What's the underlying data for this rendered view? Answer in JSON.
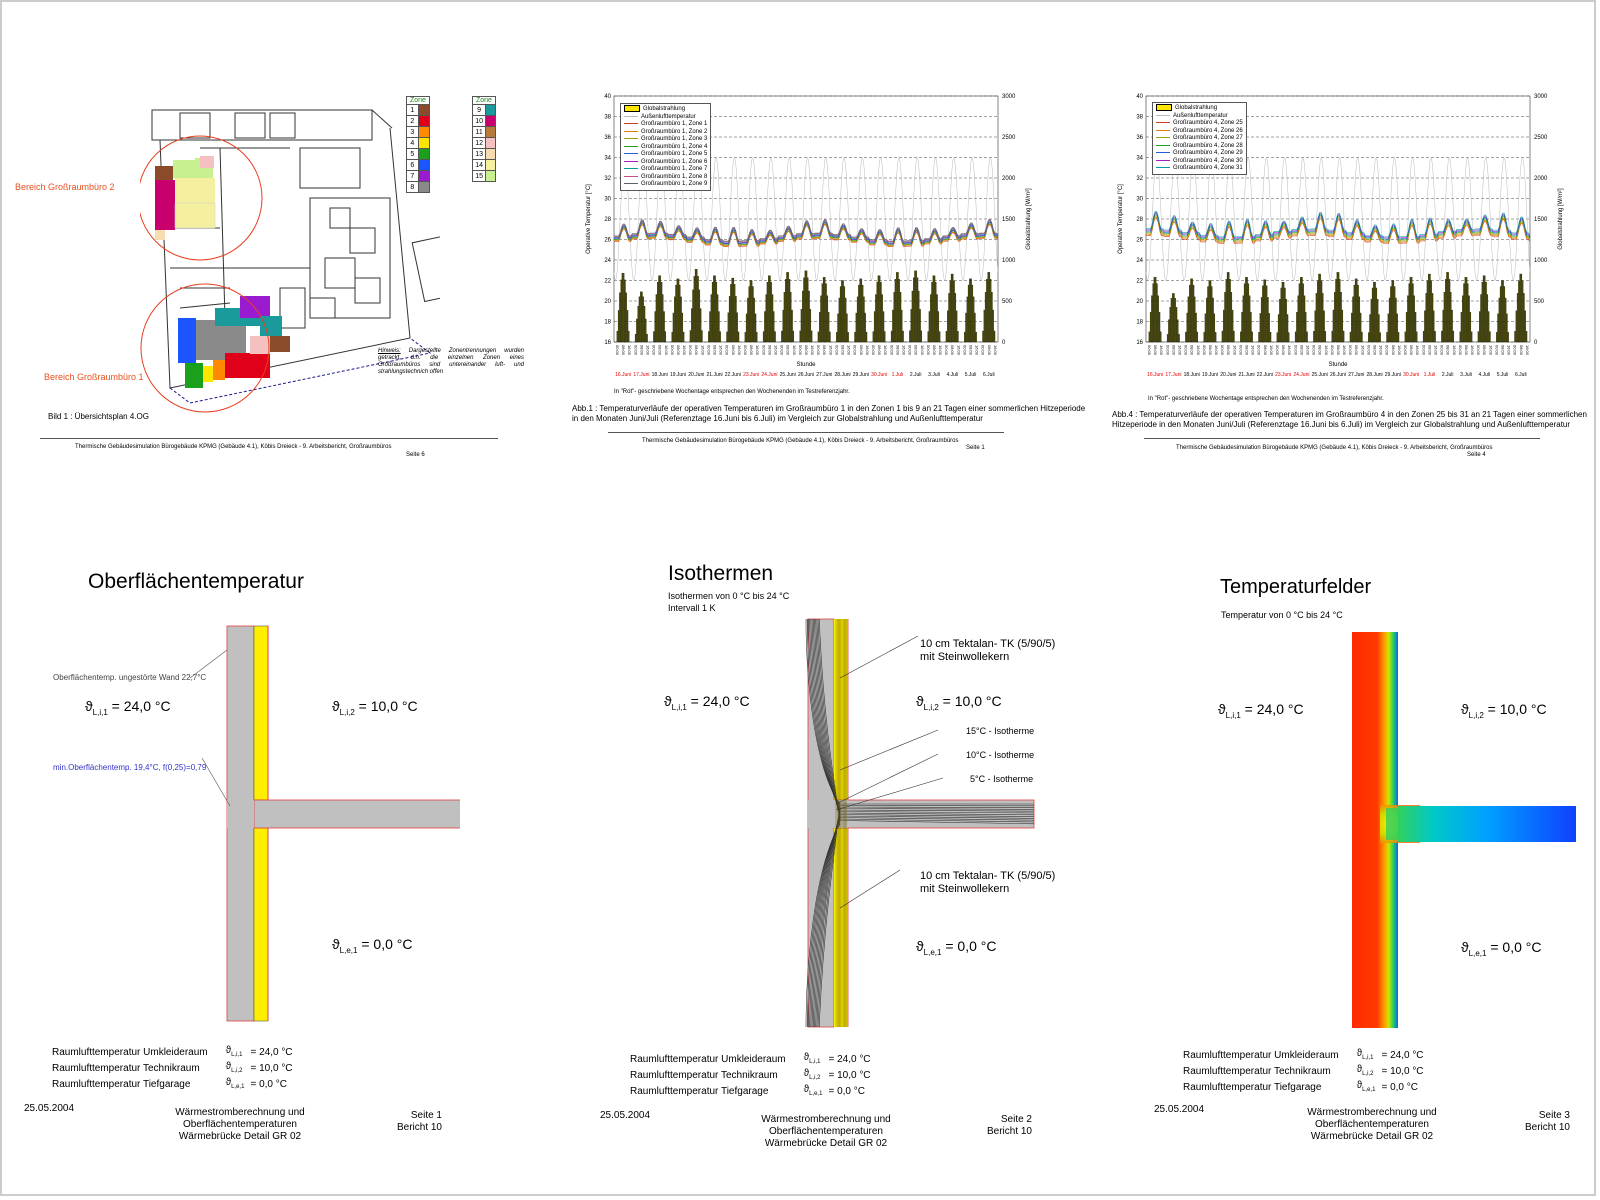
{
  "p1": {
    "legend_header": "Zone",
    "legend_col1": [
      "1",
      "2",
      "3",
      "4",
      "5",
      "6",
      "7",
      "8"
    ],
    "legend_col2": [
      "9",
      "10",
      "11",
      "12",
      "13",
      "14",
      "15"
    ],
    "colors_col1": [
      "#8b4a2a",
      "#e0001a",
      "#ff8a00",
      "#ffe600",
      "#1aa01a",
      "#1a55ff",
      "#9a1ad0",
      "#8a8a8a"
    ],
    "colors_col2": [
      "#1a9a9a",
      "#c8006e",
      "#b87a3a",
      "#f5c0c0",
      "#f7dcb0",
      "#f5f0a0",
      "#c8f090"
    ],
    "area2": "Bereich Großraumbüro  2",
    "area1": "Bereich Großraumbüro  1",
    "hint_label": "Hinweis:",
    "hint_text": " Dargestellte Zonentrennungen wurden getrackt, d.h. die einzelnen Zonen eines Großraumbüros sind untereinander luft- und strahlungstechnich offen",
    "bild": "Bild 1 : Übersichtsplan 4.OG",
    "footer": "Thermische Gebäudesimulation Bürogebäude KPMG  (Gebäude 4.1), Köbis Dreieck  - 9. Arbeitsbericht, Großraumbüros",
    "page": "Seite 6"
  },
  "p2": {
    "legend": [
      "Globalstrahlung",
      "Außenlufttemperatur",
      "Großraumbüro 1, Zone 1",
      "Großraumbüro 1, Zone 2",
      "Großraumbüro 1, Zone 3",
      "Großraumbüro 1, Zone 4",
      "Großraumbüro 1, Zone 5",
      "Großraumbüro 1, Zone 6",
      "Großraumbüro 1, Zone 7",
      "Großraumbüro 1, Zone 8",
      "Großraumbüro 1, Zone 9"
    ],
    "ylabel": "Operative Temperatur [°C]",
    "y2label": "Globalstrahlung [W/m²]",
    "xlabel": "Stunde",
    "note": "In \"Rot\"- geschriebene Wochentage entsprechen den Wochenenden im Testreferenzjahr.",
    "caption": "Abb.1 : Temperaturverläufe der operativen Temperaturen im Großraumbüro 1 in den Zonen  1 bis 9 an 21 Tagen einer sommerlichen Hitzeperiode in den Monaten Juni/Juli  (Referenztage 16.Juni bis 6.Juli) im Vergleich  zur Globalstrahlung und Außenlufttemperatur",
    "footer": "Thermische Gebäudesimulation Bürogebäude KPMG  (Gebäude 4.1), Köbis Dreieck  - 9. Arbeitsbericht, Großraumbüros",
    "page": "Seite 1"
  },
  "p3": {
    "legend": [
      "Globalstrahlung",
      "Außenlufttemperatur",
      "Großraumbüro 4, Zone 25",
      "Großraumbüro 4, Zone 26",
      "Großraumbüro 4, Zone 27",
      "Großraumbüro 4, Zone 28",
      "Großraumbüro 4, Zone 29",
      "Großraumbüro 4, Zone 30",
      "Großraumbüro 4, Zone 31"
    ],
    "ylabel": "Operative Temperatur [°C]",
    "y2label": "Globalstrahlung [W/m²]",
    "xlabel": "Stunde",
    "note": "In \"Rot\"- geschriebene Wochentage entsprechen den Wochenenden im Testreferenzjahr.",
    "caption": "Abb.4 : Temperaturverläufe der operativen Temperaturen im Großraumbüro 4 in den Zonen 25 bis 31 an 21 Tagen einer sommerlichen Hitzeperiode in den Monaten Juni/Juli (Referenztage 16.Juni bis 6.Juli) im Vergleich zur Globalstrahlung und Außenlufttemperatur",
    "footer": "Thermische Gebäudesimulation Bürogebäude KPMG (Gebäude 4.1), Köbis Dreieck - 9. Arbeitsbericht, Großraumbüros",
    "page": "Seite 4"
  },
  "chart_data": [
    {
      "type": "line",
      "y_ticks": [
        "40",
        "38",
        "36",
        "34",
        "32",
        "30",
        "28",
        "26",
        "24",
        "22",
        "20",
        "18",
        "16"
      ],
      "y2_ticks": [
        "3000",
        "2500",
        "2000",
        "1500",
        "1000",
        "500",
        "0"
      ],
      "ylim": [
        16,
        40
      ],
      "y2lim": [
        0,
        3000
      ],
      "days": [
        "16.Juni",
        "17.Juni",
        "18.Juni",
        "19.Juni",
        "20.Juni",
        "21.Juni",
        "22.Juni",
        "23.Juni",
        "24.Juni",
        "25.Juni",
        "26.Juni",
        "27.Juni",
        "28.Juni",
        "29.Juni",
        "30.Juni",
        "1.Juli",
        "2.Juli",
        "3.Juli",
        "4.Juli",
        "5.Juli",
        "6.Juli"
      ],
      "weekend": [
        true,
        true,
        false,
        false,
        false,
        false,
        false,
        true,
        true,
        false,
        false,
        false,
        false,
        false,
        true,
        true,
        false,
        false,
        false,
        false,
        false
      ],
      "series_zone_temp_range": [
        24.5,
        28.5
      ],
      "globalstrahlung_peaks": [
        850,
        620,
        820,
        780,
        900,
        820,
        790,
        760,
        820,
        860,
        880,
        800,
        760,
        780,
        820,
        860,
        880,
        820,
        840,
        780,
        860
      ]
    },
    {
      "type": "line",
      "y_ticks": [
        "40",
        "38",
        "36",
        "34",
        "32",
        "30",
        "28",
        "26",
        "24",
        "22",
        "20",
        "18",
        "16"
      ],
      "y2_ticks": [
        "3000",
        "2500",
        "2000",
        "1500",
        "1000",
        "500",
        "0"
      ],
      "ylim": [
        16,
        40
      ],
      "y2lim": [
        0,
        3000
      ],
      "days": [
        "16.Juni",
        "17.Juni",
        "18.Juni",
        "19.Juni",
        "20.Juni",
        "21.Juni",
        "22.Juni",
        "23.Juni",
        "24.Juni",
        "25.Juni",
        "26.Juni",
        "27.Juni",
        "28.Juni",
        "29.Juni",
        "30.Juni",
        "1.Juli",
        "2.Juli",
        "3.Juli",
        "4.Juli",
        "5.Juli",
        "6.Juli"
      ],
      "weekend": [
        true,
        true,
        false,
        false,
        false,
        false,
        false,
        true,
        true,
        false,
        false,
        false,
        false,
        false,
        true,
        true,
        false,
        false,
        false,
        false,
        false
      ],
      "series_zone_temp_range": [
        24.5,
        29.5
      ],
      "globalstrahlung_peaks": [
        800,
        600,
        780,
        760,
        860,
        800,
        770,
        740,
        800,
        840,
        860,
        780,
        740,
        760,
        800,
        840,
        860,
        800,
        820,
        760,
        840
      ]
    }
  ],
  "p4": {
    "title": "Oberflächentemperatur",
    "note1": "Oberflächentemp. ungestörte Wand 22,7°C",
    "note2": "min.Oberflächentemp. 19,4°C, f(0,25)=0,79",
    "t1_sym": "ϑ",
    "t1_sub": "L,i,1",
    "t1_val": " =  24,0 °C",
    "t2_sym": "ϑ",
    "t2_sub": "L,i,2",
    "t2_val": " =  10,0 °C",
    "t3_sym": "ϑ",
    "t3_sub": "L,e,1",
    "t3_val": " =    0,0 °C",
    "date": "25.05.2004",
    "footer": [
      "Wärmestromberechnung  und",
      "Oberflächentemperaturen",
      "Wärmebrücke Detail GR 02"
    ],
    "page": [
      "Seite 1",
      "Bericht  10"
    ]
  },
  "p5": {
    "title": "Isothermen",
    "sub1": "Isothermen  von  0 °C  bis 24  °C",
    "sub2": "Intervall  1 K",
    "label1": [
      "10 cm Tektalan- TK (5/90/5)",
      "mit Steinwollekern"
    ],
    "iso15": "15°C - Isotherme",
    "iso10": "10°C - Isotherme",
    "iso5": "5°C - Isotherme",
    "label2": [
      "10 cm Tektalan- TK (5/90/5)",
      "mit Steinwollekern"
    ],
    "date": "25.05.2004",
    "footer": [
      "Wärmestromberechnung  und",
      "Oberflächentemperaturen",
      "Wärmebrücke Detail GR 02"
    ],
    "page": [
      "Seite 2",
      "Bericht  10"
    ]
  },
  "p6": {
    "title": "Temperaturfelder",
    "sub": "Temperatur  von  0 °C  bis 24  °C",
    "date": "25.05.2004",
    "footer": [
      "Wärmestromberechnung  und",
      "Oberflächentemperaturen",
      "Wärmebrücke Detail GR 02"
    ],
    "page": [
      "Seite 3",
      "Bericht  10"
    ]
  },
  "rooms": [
    {
      "name": "Raumlufttemperatur  Umkleideraum",
      "sym": "ϑ",
      "sub": "L,i,1",
      "val": "=  24,0 °C"
    },
    {
      "name": "Raumlufttemperatur  Technikraum",
      "sym": "ϑ",
      "sub": "L,i,2",
      "val": "=  10,0 °C"
    },
    {
      "name": "Raumlufttemperatur  Tiefgarage",
      "sym": "ϑ",
      "sub": "L,e,1",
      "val": "=    0,0 °C"
    }
  ]
}
